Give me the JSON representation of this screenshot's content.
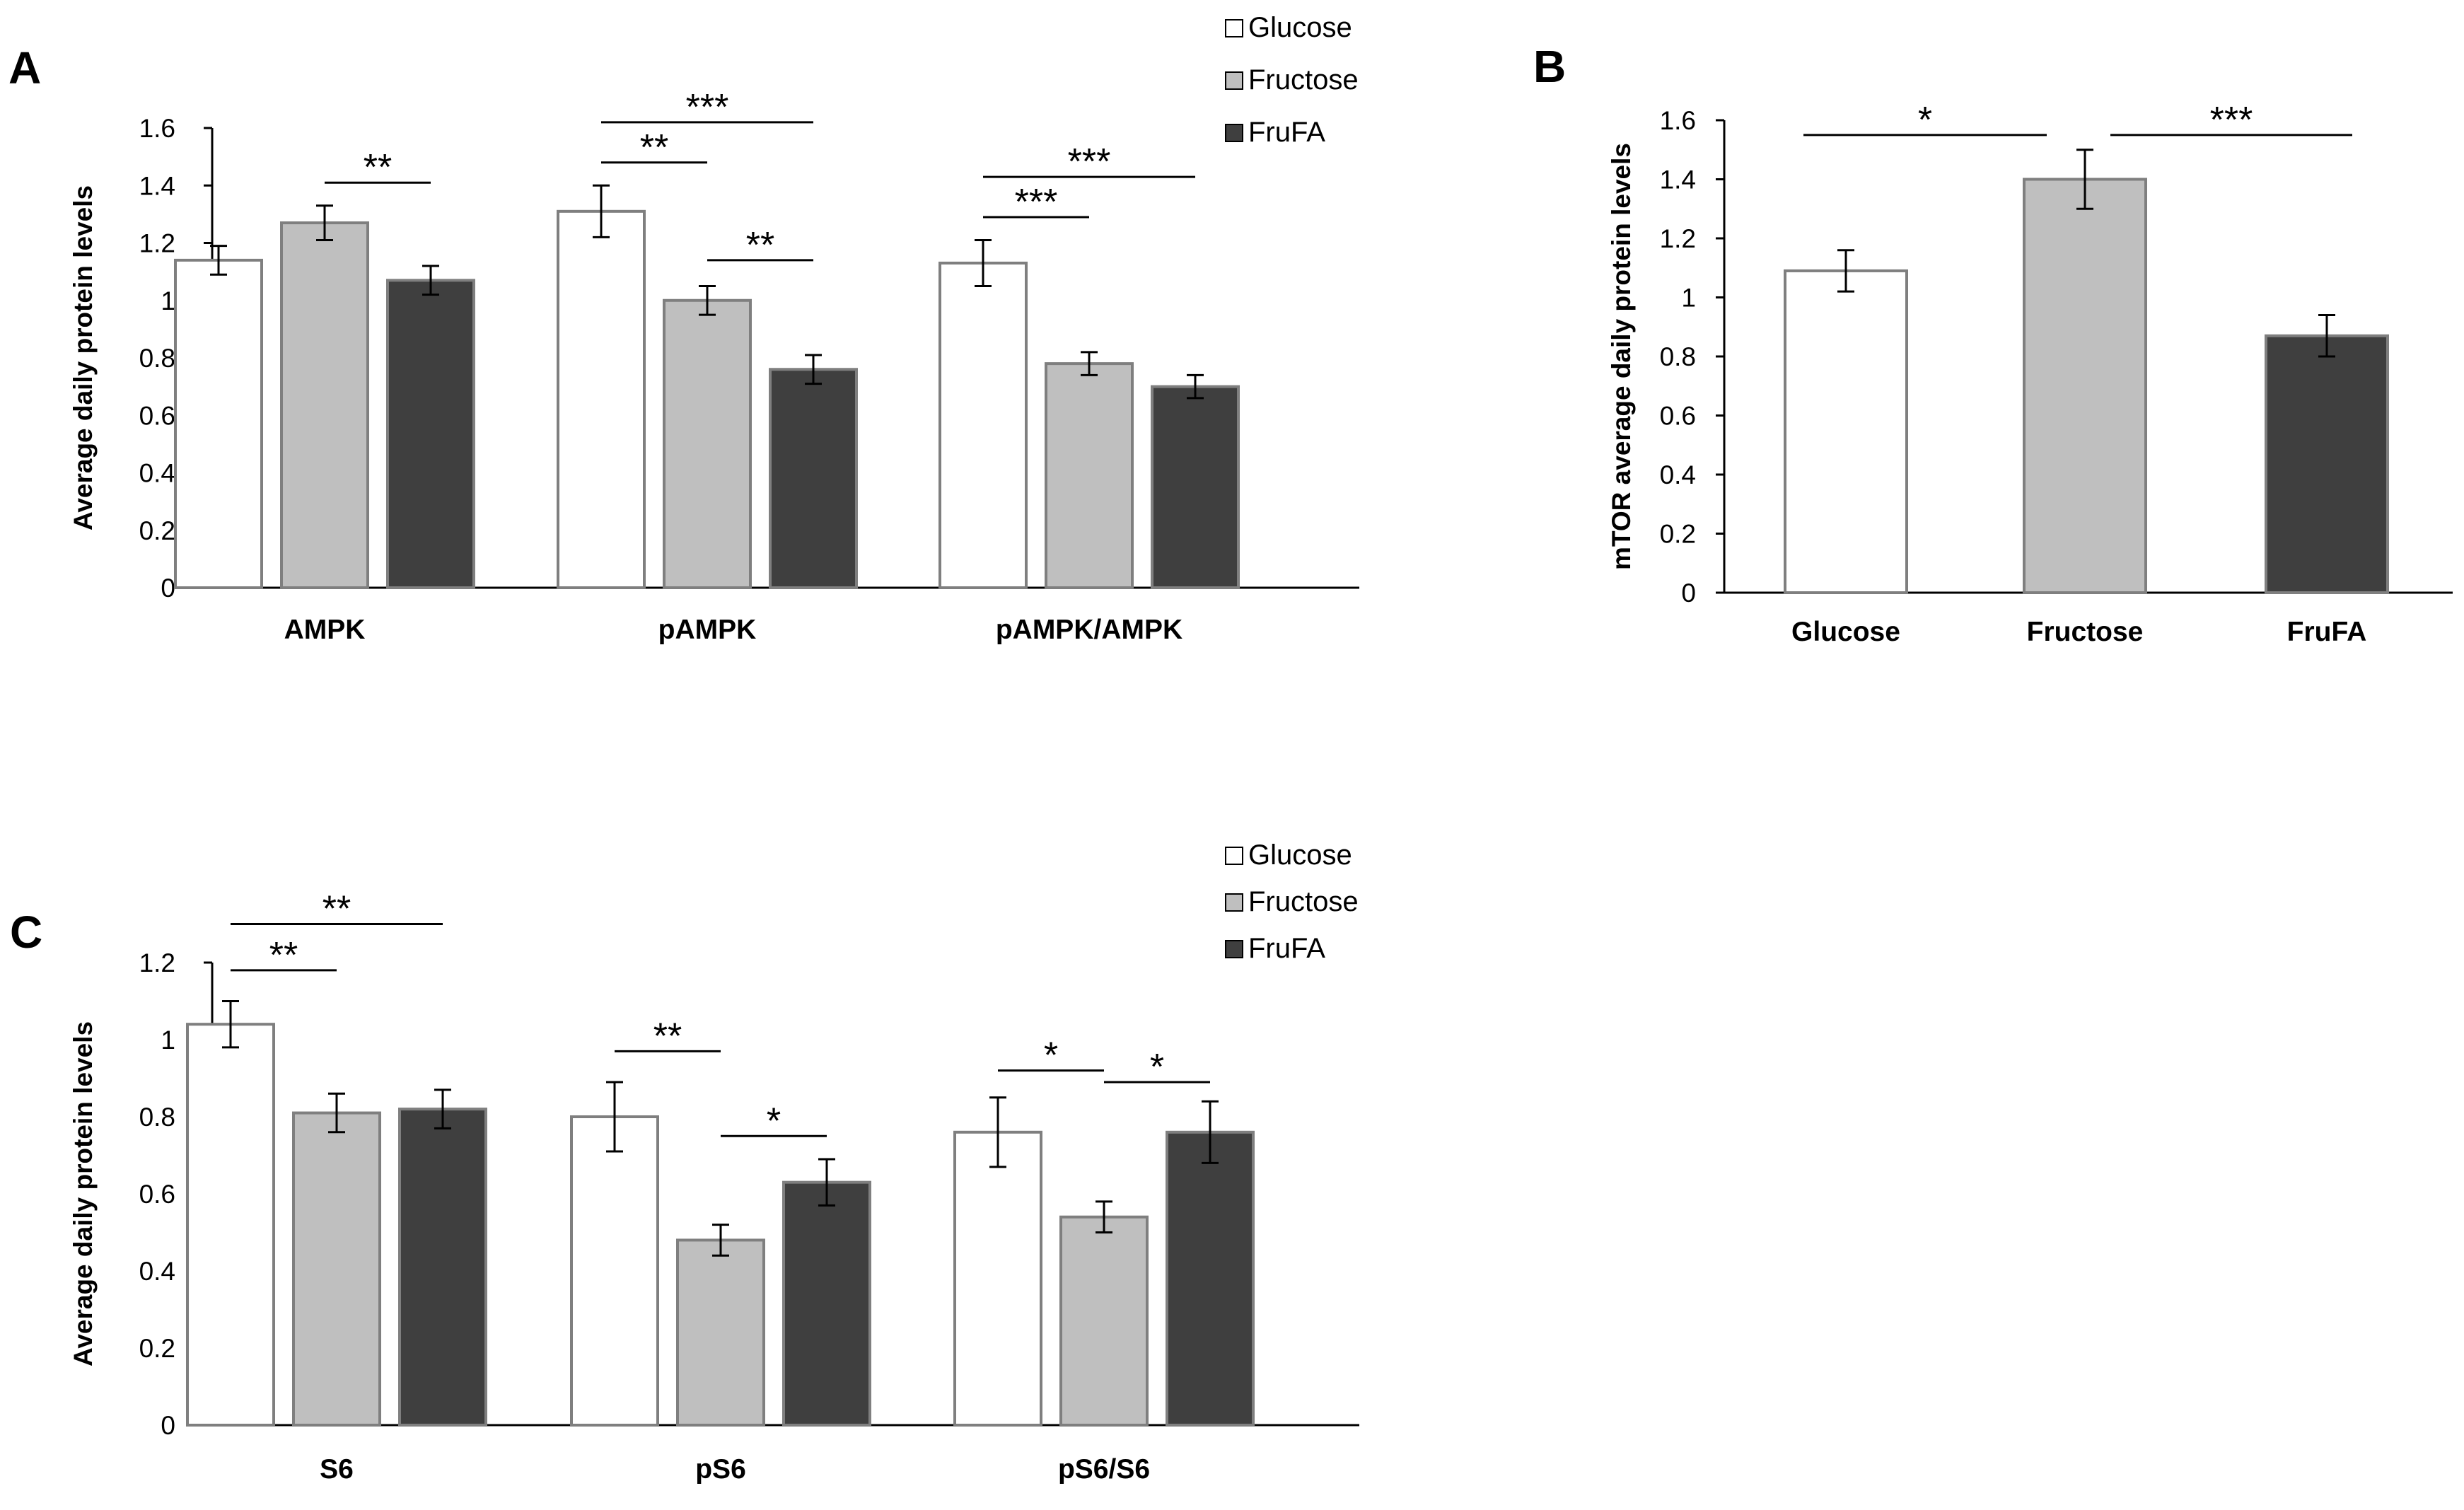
{
  "colors": {
    "glucose": "#ffffff",
    "fructose": "#bfbfbf",
    "frufa": "#3f3f3f",
    "axis": "#000000",
    "bar_edge": "#7f7f7f"
  },
  "chart_data": [
    {
      "panel": "A",
      "type": "bar",
      "title": "",
      "xlabel": "",
      "ylabel": "Average daily protein levels",
      "ylim": [
        0,
        1.6
      ],
      "yticks": [
        0,
        0.2,
        0.4,
        0.6,
        0.8,
        1,
        1.2,
        1.4,
        1.6
      ],
      "ytick_labels": [
        "0",
        "0.2",
        "0.4",
        "0.6",
        "0.8",
        "1",
        "1.2",
        "1.4",
        "1.6"
      ],
      "categories": [
        "AMPK",
        "pAMPK",
        "pAMPK/AMPK"
      ],
      "series": [
        {
          "name": "Glucose",
          "values": [
            1.14,
            1.31,
            1.13
          ],
          "errors": [
            0.05,
            0.09,
            0.08
          ]
        },
        {
          "name": "Fructose",
          "values": [
            1.27,
            1.0,
            0.78
          ],
          "errors": [
            0.06,
            0.05,
            0.04
          ]
        },
        {
          "name": "FruFA",
          "values": [
            1.07,
            0.76,
            0.7
          ],
          "errors": [
            0.05,
            0.05,
            0.04
          ]
        }
      ],
      "legend": [
        "Glucose",
        "Fructose",
        "FruFA"
      ],
      "legend_position": "top-right",
      "significance": [
        {
          "category": 0,
          "from": 1,
          "to": 2,
          "label": "**",
          "y": 1.41
        },
        {
          "category": 1,
          "from": 0,
          "to": 1,
          "label": "**",
          "y": 1.48
        },
        {
          "category": 1,
          "from": 0,
          "to": 2,
          "label": "***",
          "y": 1.62
        },
        {
          "category": 1,
          "from": 1,
          "to": 2,
          "label": "**",
          "y": 1.14
        },
        {
          "category": 2,
          "from": 0,
          "to": 1,
          "label": "***",
          "y": 1.29
        },
        {
          "category": 2,
          "from": 0,
          "to": 2,
          "label": "***",
          "y": 1.43
        }
      ]
    },
    {
      "panel": "B",
      "type": "bar",
      "title": "",
      "xlabel": "",
      "ylabel": "mTOR average daily protein levels",
      "ylim": [
        0,
        1.6
      ],
      "yticks": [
        0,
        0.2,
        0.4,
        0.6,
        0.8,
        1,
        1.2,
        1.4,
        1.6
      ],
      "ytick_labels": [
        "0",
        "0.2",
        "0.4",
        "0.6",
        "0.8",
        "1",
        "1.2",
        "1.4",
        "1.6"
      ],
      "categories": [
        "Glucose",
        "Fructose",
        "FruFA"
      ],
      "values": [
        1.09,
        1.4,
        0.87
      ],
      "errors": [
        0.07,
        0.1,
        0.07
      ],
      "significance": [
        {
          "from": 0,
          "to": 1,
          "label": "*",
          "y": 1.55
        },
        {
          "from": 1,
          "to": 2,
          "label": "***",
          "y": 1.55
        }
      ]
    },
    {
      "panel": "C",
      "type": "bar",
      "title": "",
      "xlabel": "",
      "ylabel": "Average daily protein levels",
      "ylim": [
        0,
        1.2
      ],
      "yticks": [
        0,
        0.2,
        0.4,
        0.6,
        0.8,
        1,
        1.2
      ],
      "ytick_labels": [
        "0",
        "0.2",
        "0.4",
        "0.6",
        "0.8",
        "1",
        "1.2"
      ],
      "categories": [
        "S6",
        "pS6",
        "pS6/S6"
      ],
      "series": [
        {
          "name": "Glucose",
          "values": [
            1.04,
            0.8,
            0.76
          ],
          "errors": [
            0.06,
            0.09,
            0.09
          ]
        },
        {
          "name": "Fructose",
          "values": [
            0.81,
            0.48,
            0.54
          ],
          "errors": [
            0.05,
            0.04,
            0.04
          ]
        },
        {
          "name": "FruFA",
          "values": [
            0.82,
            0.63,
            0.76
          ],
          "errors": [
            0.05,
            0.06,
            0.08
          ]
        }
      ],
      "legend": [
        "Glucose",
        "Fructose",
        "FruFA"
      ],
      "legend_position": "top-right",
      "significance": [
        {
          "category": 0,
          "from": 0,
          "to": 1,
          "label": "**",
          "y": 1.18
        },
        {
          "category": 0,
          "from": 0,
          "to": 2,
          "label": "**",
          "y": 1.3
        },
        {
          "category": 1,
          "from": 0,
          "to": 1,
          "label": "**",
          "y": 0.97
        },
        {
          "category": 1,
          "from": 1,
          "to": 2,
          "label": "*",
          "y": 0.75
        },
        {
          "category": 2,
          "from": 0,
          "to": 1,
          "label": "*",
          "y": 0.92
        },
        {
          "category": 2,
          "from": 1,
          "to": 2,
          "label": "*",
          "y": 0.89
        }
      ]
    }
  ]
}
